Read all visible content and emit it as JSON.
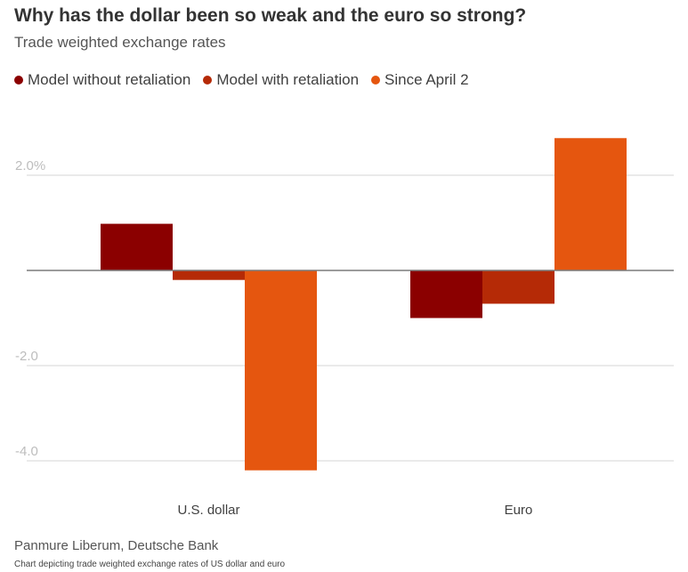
{
  "chart_data": {
    "type": "bar",
    "title": "Why has the dollar been so weak and the euro so strong?",
    "subtitle": "Trade weighted exchange rates",
    "categories": [
      "U.S. dollar",
      "Euro"
    ],
    "series": [
      {
        "name": "Model without retaliation",
        "color": "#8b0000",
        "values": [
          0.98,
          -1.0
        ]
      },
      {
        "name": "Model with retaliation",
        "color": "#b52a06",
        "values": [
          -0.2,
          -0.7
        ]
      },
      {
        "name": "Since April 2",
        "color": "#e5560f",
        "values": [
          -4.2,
          2.78
        ]
      }
    ],
    "yticks": [
      {
        "value": 2,
        "label": "2.0%"
      },
      {
        "value": -2,
        "label": "-2.0"
      },
      {
        "value": -4,
        "label": "-4.0"
      }
    ],
    "ylim": [
      -4.4,
      3.3
    ],
    "xlabel": "",
    "ylabel": ""
  },
  "source": "Panmure Liberum, Deutsche Bank",
  "caption": "Chart depicting trade weighted exchange rates of US dollar and euro"
}
